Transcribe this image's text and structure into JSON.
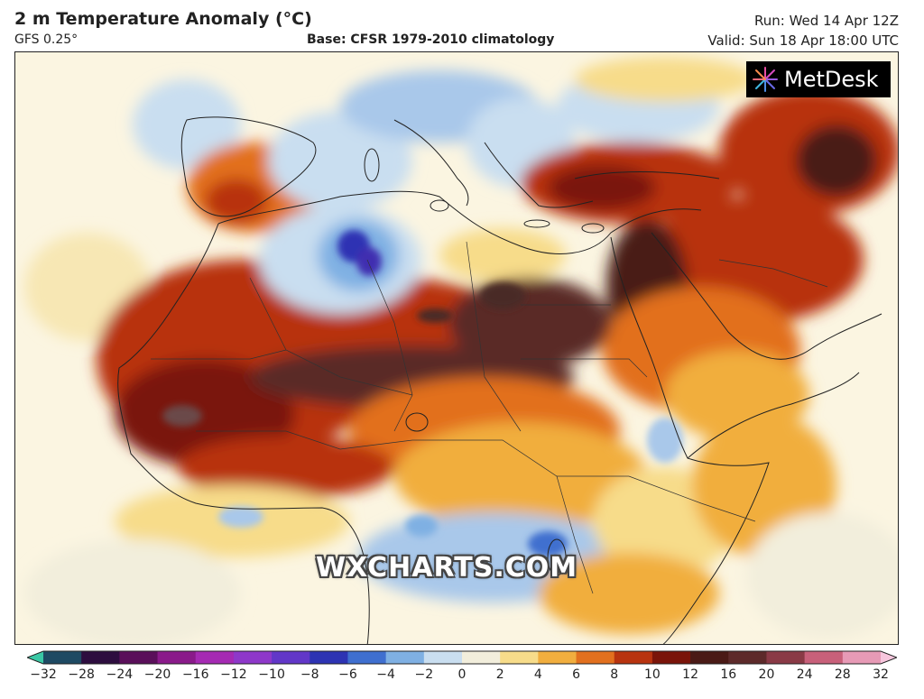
{
  "header": {
    "title": "2 m Temperature Anomaly (°C)",
    "model": "GFS 0.25°",
    "base": "Base: CFSR 1979-2010 climatology",
    "run": "Run: Wed 14 Apr 12Z",
    "valid": "Valid: Sun 18 Apr 18:00 UTC"
  },
  "logo": {
    "text": "MetDesk",
    "icon": "metdesk-starburst-icon"
  },
  "watermark": "WXCHARTS.COM",
  "legend": {
    "ticks": [
      "−32",
      "−28",
      "−24",
      "−20",
      "−16",
      "−12",
      "−10",
      "−8",
      "−6",
      "−4",
      "−2",
      "0",
      "2",
      "4",
      "6",
      "8",
      "10",
      "12",
      "16",
      "20",
      "24",
      "28",
      "32"
    ],
    "colors": [
      "#3bc8a5",
      "#1e4a63",
      "#2d0d3f",
      "#5a0f5a",
      "#8a1a8a",
      "#a52ab3",
      "#8e38c9",
      "#6237c8",
      "#2d33b3",
      "#3f6fcf",
      "#7fb0e3",
      "#c9def0",
      "#f2eedc",
      "#f7dc8a",
      "#f1ae3e",
      "#e2701e",
      "#b8330f",
      "#7a1409",
      "#4a1a16",
      "#5d2a2a",
      "#8a3a46",
      "#c8607a",
      "#e79ab6",
      "#f7c6dd"
    ]
  },
  "map": {
    "colors": {
      "sea": "#fbf5e1",
      "cold": "#7fb0e3",
      "deep_cold": "#2d33b3",
      "warm": "#f1ae3e",
      "hot": "#e2701e",
      "very_hot": "#b8330f",
      "extreme": "#5a2a28"
    }
  }
}
